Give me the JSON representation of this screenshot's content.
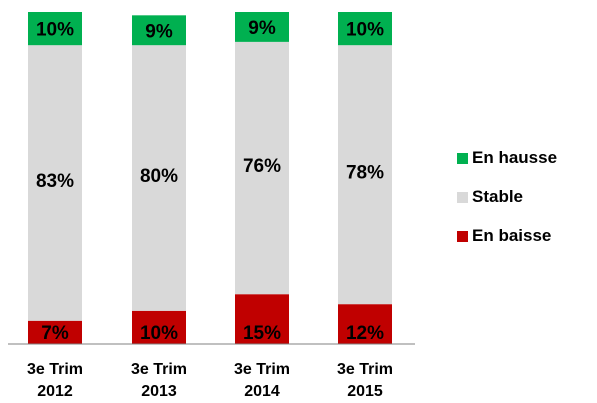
{
  "chart_data": {
    "type": "bar",
    "stacked": true,
    "categories": [
      [
        "3e Trim",
        "2012"
      ],
      [
        "3e Trim",
        "2013"
      ],
      [
        "3e Trim",
        "2014"
      ],
      [
        "3e Trim",
        "2015"
      ]
    ],
    "series": [
      {
        "name": "En baisse",
        "values": [
          7,
          10,
          15,
          12
        ],
        "labels": [
          "7%",
          "10%",
          "15%",
          "12%"
        ],
        "color": "#c00000"
      },
      {
        "name": "Stable",
        "values": [
          83,
          80,
          76,
          78
        ],
        "labels": [
          "83%",
          "80%",
          "76%",
          "78%"
        ],
        "color": "#d9d9d9"
      },
      {
        "name": "En hausse",
        "values": [
          10,
          9,
          9,
          10
        ],
        "labels": [
          "10%",
          "9%",
          "9%",
          "10%"
        ],
        "color": "#00b050"
      }
    ],
    "legend": {
      "position": "right",
      "order": [
        "En hausse",
        "Stable",
        "En baisse"
      ]
    },
    "ylim": [
      0,
      100
    ],
    "grid": false
  }
}
